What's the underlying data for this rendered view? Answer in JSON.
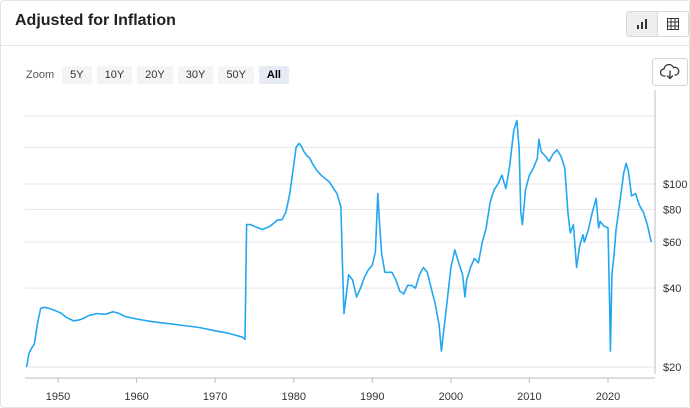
{
  "title": "Adjusted for Inflation",
  "view_toggle": {
    "chart_icon": "bar-chart-icon",
    "table_icon": "table-icon",
    "active": "chart"
  },
  "zoom": {
    "label": "Zoom",
    "options": [
      "5Y",
      "10Y",
      "20Y",
      "30Y",
      "50Y",
      "All"
    ],
    "active": "All"
  },
  "download_icon": "cloud-download-icon",
  "colors": {
    "line": "#22a7f0",
    "grid": "#e6e6e6",
    "axis": "#333333"
  },
  "chart_data": {
    "type": "line",
    "title": "Adjusted for Inflation",
    "xlabel": "",
    "ylabel": "",
    "x_ticks": [
      1950,
      1960,
      1970,
      1980,
      1990,
      2000,
      2010,
      2020
    ],
    "y_ticks": [
      "$20",
      "$40",
      "$60",
      "$80",
      "$100"
    ],
    "y_tick_values": [
      20,
      40,
      60,
      80,
      100
    ],
    "y_scale": "log",
    "xlim": [
      1946,
      2025.5
    ],
    "ylim": [
      19,
      200
    ],
    "grid": "horizontal",
    "legend": "none",
    "series": [
      {
        "values": [
          [
            1946.0,
            20
          ],
          [
            1946.3,
            22.5
          ],
          [
            1946.6,
            23.5
          ],
          [
            1947.0,
            24.5
          ],
          [
            1947.4,
            29.5
          ],
          [
            1947.8,
            33.5
          ],
          [
            1948.3,
            33.8
          ],
          [
            1948.8,
            33.5
          ],
          [
            1949.5,
            33
          ],
          [
            1950.0,
            32.5
          ],
          [
            1950.5,
            32
          ],
          [
            1951.0,
            31
          ],
          [
            1952.0,
            30
          ],
          [
            1952.6,
            30.2
          ],
          [
            1953.2,
            30.6
          ],
          [
            1954.0,
            31.5
          ],
          [
            1955.0,
            32
          ],
          [
            1956.0,
            31.8
          ],
          [
            1957.0,
            32.5
          ],
          [
            1957.6,
            32.2
          ],
          [
            1958.5,
            31.2
          ],
          [
            1960.0,
            30.5
          ],
          [
            1962.0,
            29.8
          ],
          [
            1964.0,
            29.3
          ],
          [
            1966.0,
            28.8
          ],
          [
            1968.0,
            28.3
          ],
          [
            1970.0,
            27.5
          ],
          [
            1971.5,
            27
          ],
          [
            1972.5,
            26.5
          ],
          [
            1973.5,
            26
          ],
          [
            1973.8,
            25.5
          ],
          [
            1974.0,
            70
          ],
          [
            1974.5,
            70
          ],
          [
            1975.0,
            69
          ],
          [
            1975.5,
            68
          ],
          [
            1976.0,
            67
          ],
          [
            1976.5,
            68
          ],
          [
            1977.0,
            69
          ],
          [
            1977.5,
            71
          ],
          [
            1978.0,
            73
          ],
          [
            1978.5,
            73
          ],
          [
            1979.0,
            78
          ],
          [
            1979.5,
            92
          ],
          [
            1980.0,
            118
          ],
          [
            1980.3,
            138
          ],
          [
            1980.7,
            143
          ],
          [
            1981.0,
            139
          ],
          [
            1981.3,
            133
          ],
          [
            1981.7,
            128
          ],
          [
            1982.0,
            126
          ],
          [
            1982.5,
            118
          ],
          [
            1983.0,
            112
          ],
          [
            1983.5,
            108
          ],
          [
            1984.0,
            105
          ],
          [
            1984.5,
            102
          ],
          [
            1985.0,
            97
          ],
          [
            1985.5,
            92
          ],
          [
            1986.0,
            82
          ],
          [
            1986.2,
            50
          ],
          [
            1986.4,
            32
          ],
          [
            1986.7,
            38
          ],
          [
            1987.0,
            45
          ],
          [
            1987.5,
            43
          ],
          [
            1988.0,
            37
          ],
          [
            1988.5,
            40
          ],
          [
            1989.0,
            44
          ],
          [
            1989.5,
            47
          ],
          [
            1990.0,
            49
          ],
          [
            1990.4,
            55
          ],
          [
            1990.7,
            92
          ],
          [
            1990.9,
            72
          ],
          [
            1991.2,
            54
          ],
          [
            1991.6,
            46
          ],
          [
            1992.0,
            46
          ],
          [
            1992.5,
            46
          ],
          [
            1993.0,
            43
          ],
          [
            1993.5,
            39
          ],
          [
            1994.0,
            38
          ],
          [
            1994.5,
            41
          ],
          [
            1995.0,
            41
          ],
          [
            1995.5,
            40
          ],
          [
            1996.0,
            45
          ],
          [
            1996.5,
            48
          ],
          [
            1997.0,
            46
          ],
          [
            1997.5,
            40
          ],
          [
            1998.0,
            35
          ],
          [
            1998.5,
            29
          ],
          [
            1998.8,
            23
          ],
          [
            1999.0,
            26
          ],
          [
            1999.5,
            35
          ],
          [
            2000.0,
            48
          ],
          [
            2000.5,
            56
          ],
          [
            2001.0,
            50
          ],
          [
            2001.5,
            45
          ],
          [
            2001.8,
            37
          ],
          [
            2002.0,
            43
          ],
          [
            2002.5,
            48
          ],
          [
            2003.0,
            52
          ],
          [
            2003.5,
            50
          ],
          [
            2004.0,
            60
          ],
          [
            2004.5,
            68
          ],
          [
            2005.0,
            85
          ],
          [
            2005.5,
            95
          ],
          [
            2006.0,
            100
          ],
          [
            2006.5,
            108
          ],
          [
            2007.0,
            96
          ],
          [
            2007.5,
            118
          ],
          [
            2008.0,
            160
          ],
          [
            2008.4,
            175
          ],
          [
            2008.7,
            135
          ],
          [
            2008.9,
            78
          ],
          [
            2009.1,
            70
          ],
          [
            2009.5,
            95
          ],
          [
            2010.0,
            108
          ],
          [
            2010.5,
            115
          ],
          [
            2011.0,
            125
          ],
          [
            2011.2,
            148
          ],
          [
            2011.5,
            133
          ],
          [
            2012.0,
            128
          ],
          [
            2012.5,
            122
          ],
          [
            2013.0,
            130
          ],
          [
            2013.5,
            135
          ],
          [
            2014.0,
            128
          ],
          [
            2014.5,
            115
          ],
          [
            2014.9,
            78
          ],
          [
            2015.2,
            65
          ],
          [
            2015.6,
            70
          ],
          [
            2016.0,
            48
          ],
          [
            2016.4,
            58
          ],
          [
            2016.8,
            64
          ],
          [
            2017.0,
            60
          ],
          [
            2017.5,
            67
          ],
          [
            2018.0,
            78
          ],
          [
            2018.5,
            88
          ],
          [
            2018.8,
            68
          ],
          [
            2019.0,
            72
          ],
          [
            2019.5,
            69
          ],
          [
            2020.0,
            68
          ],
          [
            2020.2,
            35
          ],
          [
            2020.3,
            23
          ],
          [
            2020.5,
            45
          ],
          [
            2020.8,
            55
          ],
          [
            2021.0,
            66
          ],
          [
            2021.5,
            85
          ],
          [
            2022.0,
            110
          ],
          [
            2022.3,
            120
          ],
          [
            2022.6,
            112
          ],
          [
            2023.0,
            90
          ],
          [
            2023.5,
            92
          ],
          [
            2024.0,
            83
          ],
          [
            2024.5,
            78
          ],
          [
            2025.0,
            70
          ],
          [
            2025.5,
            60
          ]
        ]
      }
    ]
  }
}
